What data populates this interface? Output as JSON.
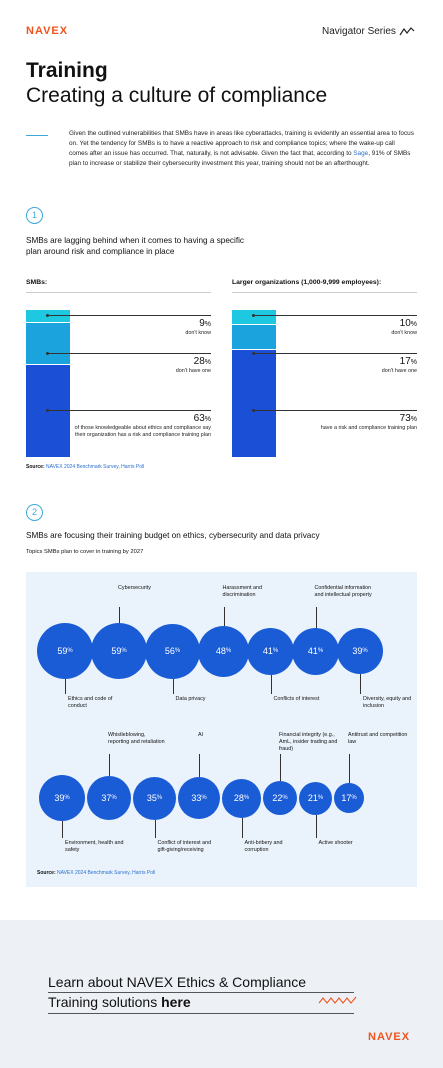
{
  "header": {
    "logo": "NAVEX",
    "series": "Navigator Series"
  },
  "title": {
    "line1": "Training",
    "line2": "Creating a culture of compliance"
  },
  "intro": {
    "part1": "Given the outlined vulnerabilities that SMBs have in areas like cyberattacks, training is evidently an essential area to focus on. Yet the tendency for SMBs is to have a reactive approach to risk and compliance topics; where the wake-up call comes after an issue has occurred. That, naturally, is not advisable. Given the fact that, according to ",
    "link": "Sage",
    "part2": ", 91% of SMBs plan to increase or stabilize their cybersecurity investment this year, training should not be an afterthought."
  },
  "section1": {
    "number": "1",
    "title": "SMBs are lagging behind when it comes to having a specific plan around risk and compliance in place",
    "smb": {
      "label": "SMBs:",
      "stats": [
        {
          "value": "9",
          "unit": "%",
          "desc": "don't know"
        },
        {
          "value": "28",
          "unit": "%",
          "desc": "don't have one"
        },
        {
          "value": "63",
          "unit": "%",
          "desc": "of those knowledgeable about ethics and compliance say their organization has a risk and compliance training plan"
        }
      ]
    },
    "large": {
      "label": "Larger organizations (1,000-9,999 employees):",
      "stats": [
        {
          "value": "10",
          "unit": "%",
          "desc": "don't know"
        },
        {
          "value": "17",
          "unit": "%",
          "desc": "don't have one"
        },
        {
          "value": "73",
          "unit": "%",
          "desc": "have a risk and compliance training plan"
        }
      ]
    },
    "source_label": "Source:",
    "source_text": "NAVEX 2024 Benchmark Survey, Harris Poll",
    "colors": {
      "dont_know": "#1ec8e0",
      "dont_have": "#1aa3dc",
      "have": "#1a4fd6"
    }
  },
  "section2": {
    "number": "2",
    "title": "SMBs are focusing their training budget on ethics, cybersecurity and data privacy",
    "subtitle": "Topics SMBs plan to cover in training by 2027",
    "source_label": "Source:",
    "source_text": "NAVEX 2024 Benchmark Survey, Harris Poll",
    "topics": [
      {
        "label": "Ethics and code of conduct",
        "value": "59",
        "unit": "%"
      },
      {
        "label": "Cybersecurity",
        "value": "59",
        "unit": "%"
      },
      {
        "label": "Data privacy",
        "value": "56",
        "unit": "%"
      },
      {
        "label": "Harassment and discrimination",
        "value": "48",
        "unit": "%"
      },
      {
        "label": "Conflicts of interest",
        "value": "41",
        "unit": "%"
      },
      {
        "label": "Confidential information and intellectual property",
        "value": "41",
        "unit": "%"
      },
      {
        "label": "Diversity, equity and inclusion",
        "value": "39",
        "unit": "%"
      },
      {
        "label": "Environment, health and safety",
        "value": "39",
        "unit": "%"
      },
      {
        "label": "Whistleblowing, reporting and retaliation",
        "value": "37",
        "unit": "%"
      },
      {
        "label": "Conflict of interest and gift-giving/receiving",
        "value": "35",
        "unit": "%"
      },
      {
        "label": "AI",
        "value": "33",
        "unit": "%"
      },
      {
        "label": "Anti-bribery and corruption",
        "value": "28",
        "unit": "%"
      },
      {
        "label": "Financial integrity (e.g., AmL, insider trading and fraud)",
        "value": "22",
        "unit": "%"
      },
      {
        "label": "Active shooter",
        "value": "21",
        "unit": "%"
      },
      {
        "label": "Antitrust and competition law",
        "value": "17",
        "unit": "%"
      }
    ]
  },
  "footer": {
    "cta_line1": "Learn about NAVEX Ethics & Compliance",
    "cta_line2a": "Training solutions ",
    "cta_line2b": "here",
    "logo": "NAVEX"
  },
  "colors": {
    "accent": "#f0531d",
    "blue": "#1a5bd6",
    "light_blue": "#3aa9d9",
    "panel": "#eaf3fb"
  }
}
